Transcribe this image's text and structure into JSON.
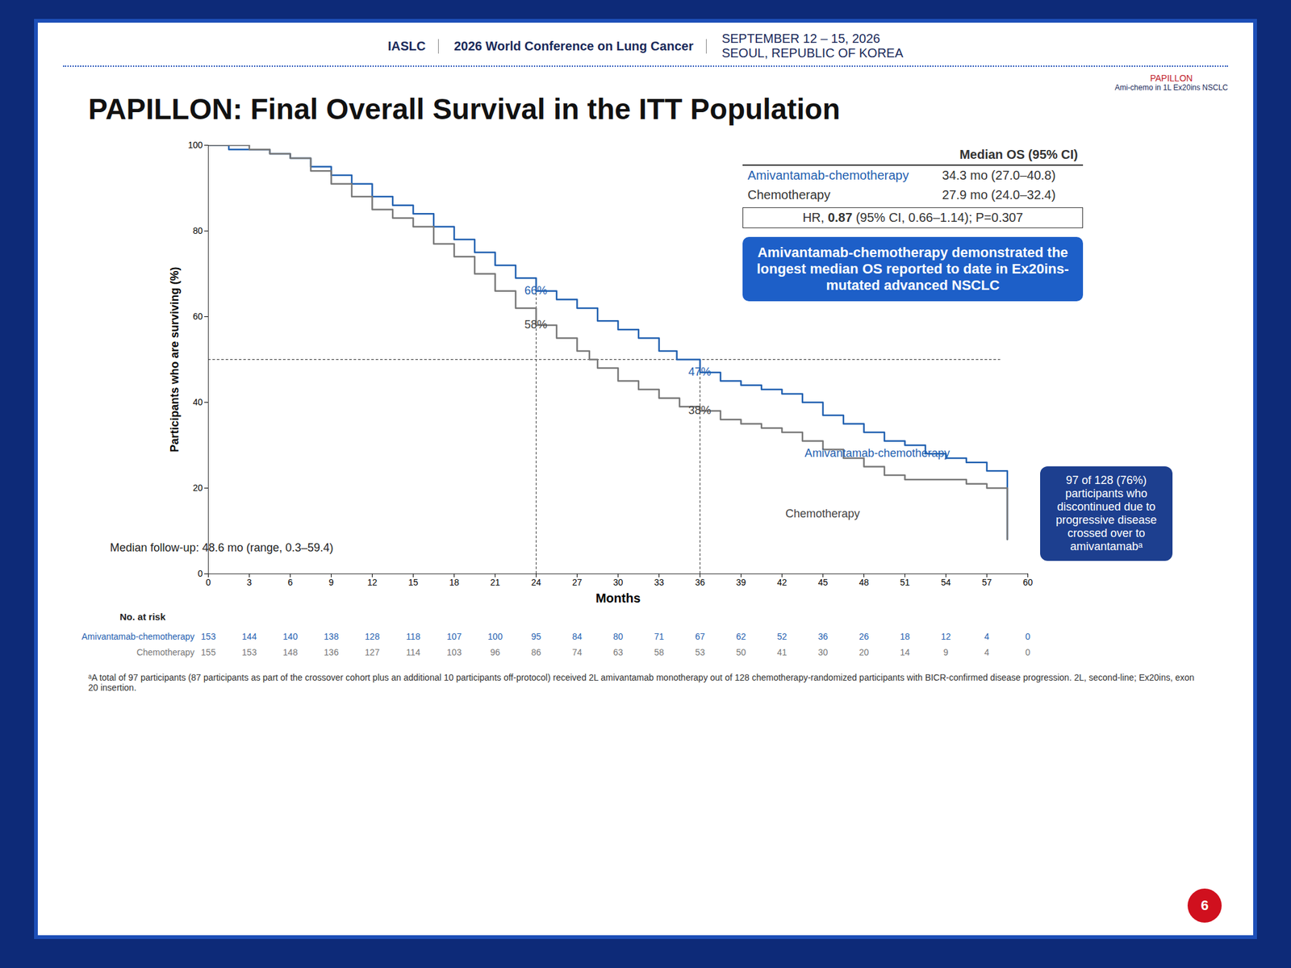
{
  "slide": {
    "org": "IASLC",
    "conference": "2026 World Conference on Lung Cancer",
    "dates": "SEPTEMBER 12 – 15, 2026",
    "place": "SEOUL, REPUBLIC OF KOREA",
    "logo": "PAPILLON",
    "logo_sub": "Ami-chemo in 1L Ex20ins NSCLC",
    "page": "6",
    "footnote": "ᵃA total of 97 participants (87 participants as part of the crossover cohort plus an additional 10 participants off-protocol) received 2L amivantamab monotherapy out of 128 chemotherapy-randomized participants with BICR-confirmed disease progression. 2L, second-line; Ex20ins, exon 20 insertion."
  },
  "chart_data": {
    "type": "line",
    "line_style": "step",
    "title": "PAPILLON: Final Overall Survival in the ITT Population",
    "x_label": "Months",
    "y_label": "Participants who are surviving (%)",
    "xlim": [
      0,
      60
    ],
    "xticks": [
      0,
      3,
      6,
      9,
      12,
      15,
      18,
      21,
      24,
      27,
      30,
      33,
      36,
      39,
      42,
      45,
      48,
      51,
      54,
      57,
      60
    ],
    "ylim": [
      0,
      100
    ],
    "yticks": [
      0,
      20,
      40,
      60,
      80,
      100
    ],
    "grid": false,
    "series": [
      {
        "name": "Amivantamab-chemotherapy",
        "color": "#1f5fb0",
        "x": [
          0,
          1.5,
          3,
          4.5,
          6,
          7.5,
          9,
          10.5,
          12,
          13.5,
          15,
          16.5,
          18,
          19.5,
          21,
          22.5,
          24,
          25.5,
          27,
          28.5,
          30,
          31.5,
          33,
          34.3,
          36,
          37.5,
          39,
          40.5,
          42,
          43.5,
          45,
          46.5,
          48,
          49.5,
          51,
          52.5,
          54,
          55.5,
          57,
          58.5
        ],
        "values": [
          100,
          99,
          99,
          98,
          97,
          95,
          93,
          91,
          88,
          86,
          84,
          81,
          78,
          75,
          72,
          69,
          66,
          64,
          62,
          59,
          57,
          55,
          52,
          50,
          47,
          45,
          44,
          43,
          42,
          40,
          37,
          35,
          33,
          31,
          30,
          28,
          27,
          26,
          24,
          8
        ]
      },
      {
        "name": "Chemotherapy",
        "color": "#777777",
        "x": [
          0,
          1.5,
          3,
          4.5,
          6,
          7.5,
          9,
          10.5,
          12,
          13.5,
          15,
          16.5,
          18,
          19.5,
          21,
          22.5,
          24,
          25.5,
          27,
          27.9,
          28.5,
          30,
          31.5,
          33,
          34.5,
          36,
          37.5,
          39,
          40.5,
          42,
          43.5,
          45,
          46.5,
          48,
          49.5,
          51,
          52.5,
          54,
          55.5,
          57,
          58.5
        ],
        "values": [
          100,
          100,
          99,
          98,
          97,
          94,
          91,
          88,
          85,
          83,
          81,
          77,
          74,
          70,
          66,
          62,
          58,
          55,
          52,
          50,
          48,
          45,
          43,
          41,
          39,
          38,
          36,
          35,
          34,
          33,
          31,
          29,
          27,
          25,
          23,
          22,
          22,
          22,
          21,
          20,
          8
        ]
      }
    ],
    "reference_lines": {
      "y": 50,
      "y_x_end": 58,
      "x": [
        {
          "x": 24,
          "to": 66
        },
        {
          "x": 36,
          "to": 47
        }
      ]
    },
    "annotations": [
      {
        "x": 24,
        "y": 66,
        "text": "66%",
        "color": "#1f5fb0"
      },
      {
        "x": 24,
        "y": 58,
        "text": "58%",
        "color": "#444444"
      },
      {
        "x": 36,
        "y": 47,
        "text": "47%",
        "color": "#1f5fb0"
      },
      {
        "x": 36,
        "y": 38,
        "text": "38%",
        "color": "#444444"
      },
      {
        "x": 49,
        "y": 28,
        "text": "Amivantamab-chemotherapy",
        "color": "#1f5fb0"
      },
      {
        "x": 45,
        "y": 14,
        "text": "Chemotherapy",
        "color": "#444444"
      },
      {
        "x": 1,
        "y": 6,
        "text": "Median follow-up: 48.6 mo (range, 0.3–59.4)",
        "color": "#222222"
      }
    ],
    "median_table": {
      "header": "Median OS (95% CI)",
      "rows": [
        {
          "name": "Amivantamab-chemotherapy",
          "value": "34.3 mo (27.0–40.8)"
        },
        {
          "name": "Chemotherapy",
          "value": "27.9 mo (24.0–32.4)"
        }
      ],
      "hr_prefix": "HR, ",
      "hr_value": "0.87",
      "hr_suffix": " (95% CI, 0.66–1.14); P=0.307",
      "claim": "Amivantamab-chemotherapy demonstrated the longest median OS reported to date in Ex20ins-mutated advanced NSCLC"
    },
    "crossover_note": "97 of 128 (76%) participants who discontinued due to progressive disease crossed over to amivantamabᵃ",
    "at_risk": {
      "title": "No. at risk",
      "times": [
        0,
        3,
        6,
        9,
        12,
        15,
        18,
        21,
        24,
        27,
        30,
        33,
        36,
        39,
        42,
        45,
        48,
        51,
        54,
        57,
        60
      ],
      "rows": [
        {
          "name": "Amivantamab-chemotherapy",
          "values": [
            153,
            144,
            140,
            138,
            128,
            118,
            107,
            100,
            95,
            84,
            80,
            71,
            67,
            62,
            52,
            36,
            26,
            18,
            12,
            4,
            0
          ]
        },
        {
          "name": "Chemotherapy",
          "values": [
            155,
            153,
            148,
            136,
            127,
            114,
            103,
            96,
            86,
            74,
            63,
            58,
            53,
            50,
            41,
            30,
            20,
            14,
            9,
            4,
            0
          ]
        }
      ]
    }
  }
}
